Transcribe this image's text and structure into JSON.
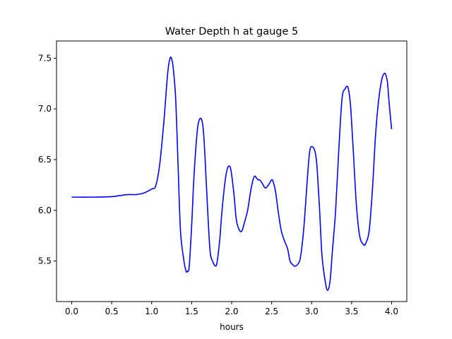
{
  "chart_data": {
    "type": "line",
    "title": "Water Depth h at gauge 5",
    "xlabel": "hours",
    "ylabel": "",
    "xlim": [
      -0.19,
      4.19
    ],
    "ylim": [
      5.1,
      7.67
    ],
    "xticks": [
      "0.0",
      "0.5",
      "1.0",
      "1.5",
      "2.0",
      "2.5",
      "3.0",
      "3.5",
      "4.0"
    ],
    "yticks": [
      "5.5",
      "6.0",
      "6.5",
      "7.0",
      "7.5"
    ],
    "grid": false,
    "legend": "none",
    "series": [
      {
        "color": "#0000ff",
        "x": [
          0.0,
          0.25,
          0.5,
          0.6,
          0.7,
          0.8,
          0.9,
          1.0,
          1.05,
          1.1,
          1.15,
          1.2,
          1.23,
          1.25,
          1.27,
          1.3,
          1.33,
          1.36,
          1.4,
          1.43,
          1.45,
          1.47,
          1.5,
          1.53,
          1.57,
          1.6,
          1.63,
          1.65,
          1.67,
          1.7,
          1.73,
          1.76,
          1.8,
          1.82,
          1.85,
          1.88,
          1.92,
          1.95,
          1.98,
          2.0,
          2.03,
          2.06,
          2.1,
          2.13,
          2.16,
          2.2,
          2.24,
          2.28,
          2.31,
          2.33,
          2.35,
          2.38,
          2.42,
          2.46,
          2.5,
          2.52,
          2.55,
          2.58,
          2.62,
          2.66,
          2.7,
          2.73,
          2.77,
          2.8,
          2.85,
          2.88,
          2.91,
          2.95,
          2.98,
          3.02,
          3.05,
          3.07,
          3.1,
          3.13,
          3.17,
          3.2,
          3.23,
          3.26,
          3.3,
          3.34,
          3.38,
          3.42,
          3.45,
          3.47,
          3.49,
          3.52,
          3.56,
          3.6,
          3.65,
          3.68,
          3.72,
          3.76,
          3.8,
          3.84,
          3.88,
          3.91,
          3.93,
          3.95,
          3.97,
          4.0
        ],
        "y": [
          6.13,
          6.13,
          6.135,
          6.145,
          6.155,
          6.155,
          6.17,
          6.21,
          6.24,
          6.45,
          6.85,
          7.35,
          7.5,
          7.49,
          7.4,
          7.1,
          6.45,
          5.8,
          5.52,
          5.4,
          5.4,
          5.45,
          5.85,
          6.35,
          6.78,
          6.9,
          6.88,
          6.75,
          6.48,
          6.0,
          5.6,
          5.5,
          5.45,
          5.5,
          5.7,
          6.0,
          6.3,
          6.42,
          6.43,
          6.35,
          6.15,
          5.9,
          5.8,
          5.8,
          5.88,
          6.0,
          6.2,
          6.33,
          6.32,
          6.3,
          6.3,
          6.27,
          6.22,
          6.25,
          6.3,
          6.28,
          6.18,
          6.0,
          5.8,
          5.7,
          5.62,
          5.5,
          5.46,
          5.45,
          5.5,
          5.65,
          5.9,
          6.35,
          6.6,
          6.62,
          6.55,
          6.4,
          6.0,
          5.55,
          5.3,
          5.21,
          5.3,
          5.6,
          6.0,
          6.6,
          7.1,
          7.2,
          7.22,
          7.15,
          7.0,
          6.6,
          6.05,
          5.75,
          5.66,
          5.68,
          5.8,
          6.2,
          6.75,
          7.1,
          7.3,
          7.35,
          7.33,
          7.25,
          7.05,
          6.8
        ]
      }
    ]
  }
}
